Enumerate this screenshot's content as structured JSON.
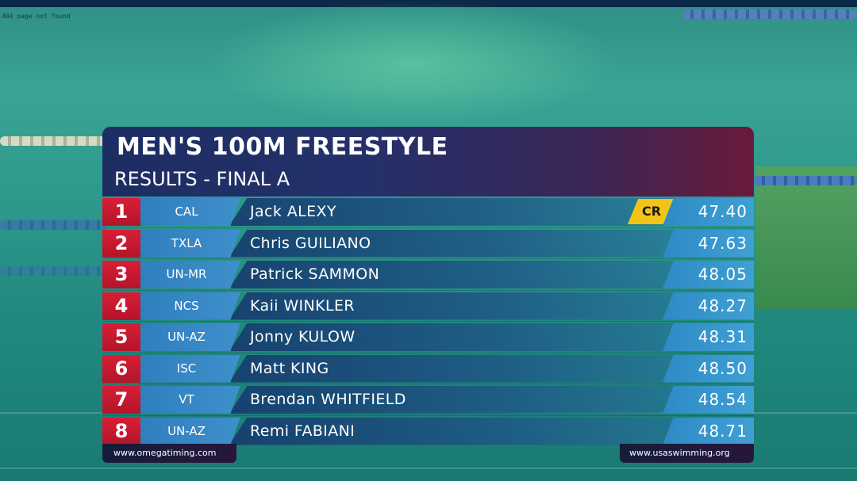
{
  "error_text": "404 page not found",
  "board": {
    "title": "MEN'S 100M FREESTYLE",
    "subtitle": "RESULTS - FINAL A",
    "results": [
      {
        "rank": "1",
        "team": "CAL",
        "name": "Jack ALEXY",
        "time": "47.40",
        "record": "CR"
      },
      {
        "rank": "2",
        "team": "TXLA",
        "name": "Chris GUILIANO",
        "time": "47.63"
      },
      {
        "rank": "3",
        "team": "UN-MR",
        "name": "Patrick SAMMON",
        "time": "48.05"
      },
      {
        "rank": "4",
        "team": "NCS",
        "name": "Kaii WINKLER",
        "time": "48.27"
      },
      {
        "rank": "5",
        "team": "UN-AZ",
        "name": "Jonny KULOW",
        "time": "48.31"
      },
      {
        "rank": "6",
        "team": "ISC",
        "name": "Matt KING",
        "time": "48.50"
      },
      {
        "rank": "7",
        "team": "VT",
        "name": "Brendan WHITFIELD",
        "time": "48.54"
      },
      {
        "rank": "8",
        "team": "UN-AZ",
        "name": "Remi FABIANI",
        "time": "48.71"
      }
    ]
  },
  "footer": {
    "left": "www.omegatiming.com",
    "right": "www.usaswimming.org"
  },
  "colors": {
    "rank_red": "#c81a30",
    "team_blue": "#3585c4",
    "record_yellow": "#f2c417",
    "header_navy": "#1d2e63"
  }
}
